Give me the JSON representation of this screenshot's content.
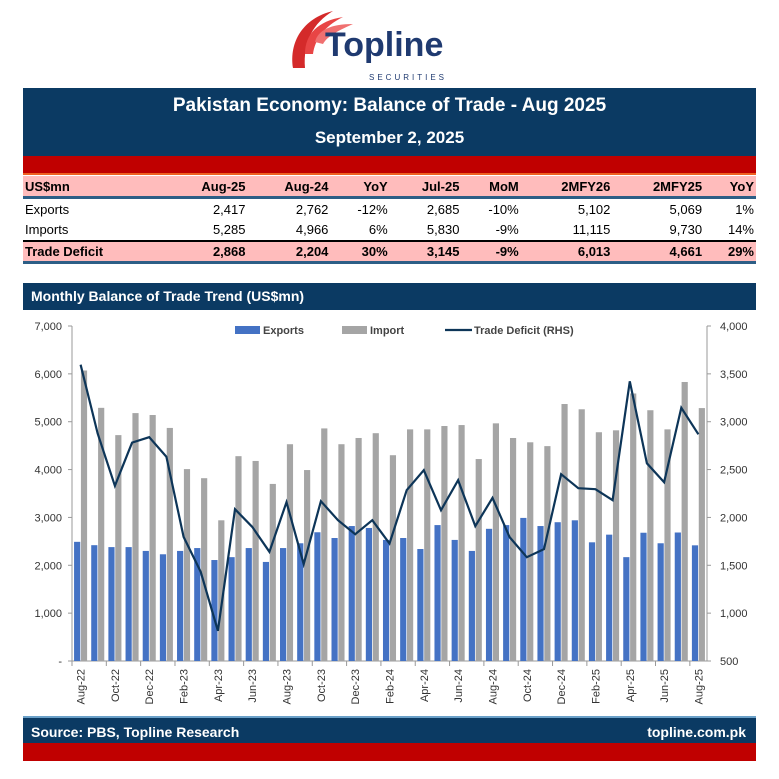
{
  "logo": {
    "name": "Topline",
    "sub": "SECURITIES"
  },
  "header": {
    "title": "Pakistan Economy: Balance of Trade - Aug 2025",
    "date": "September 2, 2025"
  },
  "table": {
    "columns": [
      "US$mn",
      "Aug-25",
      "Aug-24",
      "YoY",
      "Jul-25",
      "MoM",
      "2MFY26",
      "2MFY25",
      "YoY"
    ],
    "rows": [
      [
        "Exports",
        "2,417",
        "2,762",
        "-12%",
        "2,685",
        "-10%",
        "5,102",
        "5,069",
        "1%"
      ],
      [
        "Imports",
        "5,285",
        "4,966",
        "6%",
        "5,830",
        "-9%",
        "11,115",
        "9,730",
        "14%"
      ],
      [
        "Trade Deficit",
        "2,868",
        "2,204",
        "30%",
        "3,145",
        "-9%",
        "6,013",
        "4,661",
        "29%"
      ]
    ]
  },
  "section_title": "Monthly Balance of Trade Trend (US$mn)",
  "footer": {
    "source": "Source: PBS, Topline Research",
    "site": "topline.com.pk"
  },
  "colors": {
    "navy": "#0b3a63",
    "red": "#c00000",
    "exports": "#4472c4",
    "imports": "#a5a5a5",
    "deficit": "#0d3558",
    "pink": "#ffbcbc"
  },
  "chart_data": {
    "type": "bar+line",
    "categories": [
      "Aug-22",
      "Sep-22",
      "Oct-22",
      "Nov-22",
      "Dec-22",
      "Jan-23",
      "Feb-23",
      "Mar-23",
      "Apr-23",
      "May-23",
      "Jun-23",
      "Jul-23",
      "Aug-23",
      "Sep-23",
      "Oct-23",
      "Nov-23",
      "Dec-23",
      "Jan-24",
      "Feb-24",
      "Mar-24",
      "Apr-24",
      "May-24",
      "Jun-24",
      "Jul-24",
      "Aug-24",
      "Sep-24",
      "Oct-24",
      "Nov-24",
      "Dec-24",
      "Jan-25",
      "Feb-25",
      "Mar-25",
      "Apr-25",
      "May-25",
      "Jun-25",
      "Jul-25",
      "Aug-25"
    ],
    "tick_labels": [
      "Aug-22",
      "Oct-22",
      "Dec-22",
      "Feb-23",
      "Apr-23",
      "Jun-23",
      "Aug-23",
      "Oct-23",
      "Dec-23",
      "Feb-24",
      "Apr-24",
      "Jun-24",
      "Aug-24",
      "Oct-24",
      "Dec-24",
      "Feb-25",
      "Apr-25",
      "Jun-25",
      "Aug-25"
    ],
    "series": [
      {
        "name": "Exports",
        "type": "bar",
        "axis": "left",
        "values": [
          2490,
          2420,
          2380,
          2380,
          2300,
          2230,
          2300,
          2360,
          2110,
          2170,
          2360,
          2070,
          2360,
          2460,
          2690,
          2570,
          2820,
          2780,
          2530,
          2570,
          2340,
          2840,
          2530,
          2300,
          2762,
          2840,
          2990,
          2820,
          2900,
          2940,
          2480,
          2640,
          2170,
          2680,
          2460,
          2685,
          2417
        ]
      },
      {
        "name": "Import",
        "type": "bar",
        "axis": "left",
        "values": [
          6070,
          5290,
          4720,
          5180,
          5140,
          4870,
          4010,
          3820,
          2940,
          4280,
          4180,
          3700,
          4530,
          3990,
          4860,
          4530,
          4660,
          4760,
          4300,
          4840,
          4840,
          4910,
          4930,
          4220,
          4966,
          4660,
          4570,
          4490,
          5370,
          5260,
          4780,
          4820,
          5590,
          5240,
          4840,
          5830,
          5285
        ]
      },
      {
        "name": "Trade Deficit (RHS)",
        "type": "line",
        "axis": "right",
        "values": [
          3596,
          2876,
          2330,
          2782,
          2838,
          2633,
          1797,
          1432,
          816,
          2086,
          1902,
          1641,
          2159,
          1512,
          2170,
          1971,
          1825,
          1971,
          1728,
          2285,
          2493,
          2076,
          2389,
          1909,
          2204,
          1794,
          1585,
          1669,
          2452,
          2305,
          2295,
          2180,
          3422,
          2566,
          2368,
          3145,
          2868
        ]
      }
    ],
    "y_left": {
      "range": [
        0,
        7000
      ],
      "ticks": [
        "-",
        "1,000",
        "2,000",
        "3,000",
        "4,000",
        "5,000",
        "6,000",
        "7,000"
      ]
    },
    "y_right": {
      "range": [
        500,
        4000
      ],
      "ticks": [
        "500",
        "1,000",
        "1,500",
        "2,000",
        "2,500",
        "3,000",
        "3,500",
        "4,000"
      ]
    },
    "legend_position": "top",
    "grid": false
  }
}
